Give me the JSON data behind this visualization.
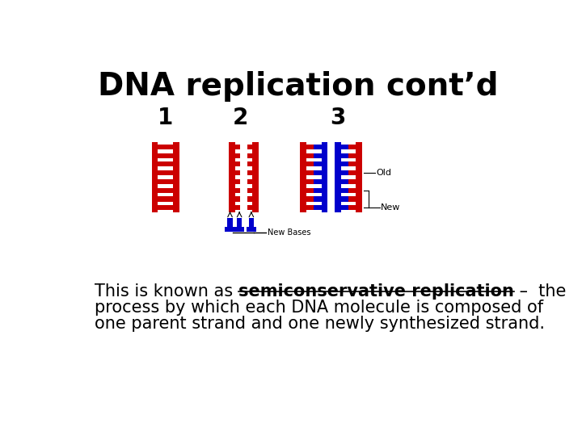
{
  "title": "DNA replication cont’d",
  "title_fontsize": 28,
  "bg_color": "#ffffff",
  "red": "#cc0000",
  "blue": "#0000cc",
  "label1": "1",
  "label2": "2",
  "label3": "3",
  "body_text_line1_normal": "This is known as ",
  "body_text_line1_bold": "semiconservative replication",
  "body_text_line1_end": " –  the",
  "body_text_line2": "process by which each DNA molecule is composed of",
  "body_text_line3": "one parent strand and one newly synthesized strand.",
  "body_fontsize": 15,
  "annotation_old": "Old",
  "annotation_new": "New",
  "annotation_newbases": "New Bases"
}
